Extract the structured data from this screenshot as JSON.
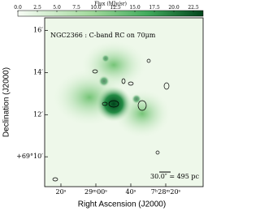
{
  "chart_data": {
    "type": "image",
    "title": "NGC2366 : C-band RC on 70μm",
    "colorbar_label": "Flux (MJy/sr)",
    "colormap": "Greens",
    "clim": [
      0,
      23.75
    ],
    "cticks": [
      {
        "value": 0,
        "label": "0.0"
      },
      2.5,
      {
        "value": 5,
        "label": "5.0"
      },
      7.5,
      {
        "value": 10,
        "label": "10.0"
      },
      12.5,
      {
        "value": 15,
        "label": "15.0"
      },
      17.5,
      {
        "value": 20,
        "label": "20.0"
      },
      22.5
    ],
    "xlabel": "Right Ascension (J2000)",
    "ylabel": "Declination (J2000)",
    "xlim": [
      89.3,
      -1.4
    ],
    "xticks": [
      {
        "value": 80,
        "label": "20ˢ"
      },
      {
        "value": 60,
        "label": "29ᵐ00ˢ"
      },
      {
        "value": 40,
        "label": "40ˢ"
      },
      {
        "value": 20,
        "label": "7ʰ28ᵐ20ˢ"
      }
    ],
    "ylim": [
      8.58,
      16.6
    ],
    "yticks": [
      {
        "value": 16,
        "label": "16′"
      },
      {
        "value": 14,
        "label": "14′"
      },
      {
        "value": 12,
        "label": "12′"
      },
      {
        "value": 10,
        "label": "+69°10′"
      }
    ],
    "scalebar_label": "30.0″ = 495 pc"
  }
}
